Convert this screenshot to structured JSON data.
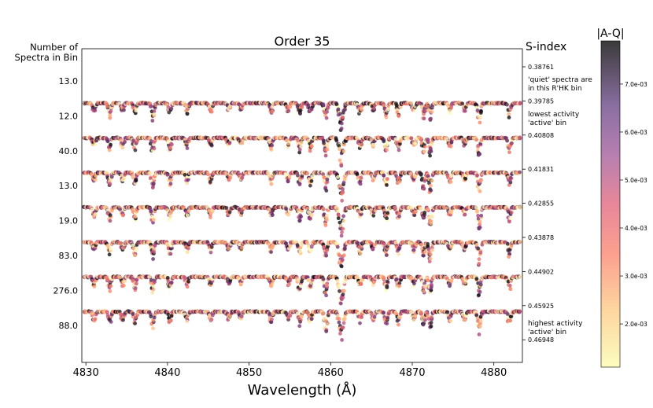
{
  "chart_data": {
    "type": "scatter",
    "title": "Order 35",
    "xlabel": "Wavelength (Å)",
    "xlim": [
      4829.5,
      4883.5
    ],
    "x_ticks": [
      "4830",
      "4840",
      "4850",
      "4860",
      "4870",
      "4880"
    ],
    "x_tick_values": [
      4830,
      4840,
      4850,
      4860,
      4870,
      4880
    ],
    "left_axis_title": [
      "Number of",
      "Spectra in Bin"
    ],
    "left_labels": [
      "13.0",
      "12.0",
      "40.0",
      "13.0",
      "19.0",
      "83.0",
      "276.0",
      "88.0"
    ],
    "right_axis_title": "S-index",
    "right_ticks": [
      "0.38761",
      "0.39785",
      "0.40808",
      "0.41831",
      "0.42855",
      "0.43878",
      "0.44902",
      "0.45925",
      "0.46948"
    ],
    "annotations": [
      {
        "lines": [
          "'quiet' spectra are",
          "in this R'HK bin"
        ],
        "near": "0.38761-0.39785"
      },
      {
        "lines": [
          "lowest activity",
          "'active' bin"
        ],
        "near": "0.39785-0.40808"
      },
      {
        "lines": [
          "highest activity",
          "'active' bin"
        ],
        "near": "0.45925-0.46948"
      }
    ],
    "absorption_lines": [
      {
        "x": 4831.0,
        "depth": 0.35
      },
      {
        "x": 4832.9,
        "depth": 0.5
      },
      {
        "x": 4834.5,
        "depth": 0.35
      },
      {
        "x": 4836.0,
        "depth": 0.45
      },
      {
        "x": 4838.2,
        "depth": 0.6
      },
      {
        "x": 4840.3,
        "depth": 0.45
      },
      {
        "x": 4842.4,
        "depth": 0.35
      },
      {
        "x": 4845.3,
        "depth": 0.35
      },
      {
        "x": 4847.5,
        "depth": 0.3
      },
      {
        "x": 4849.0,
        "depth": 0.25
      },
      {
        "x": 4852.7,
        "depth": 0.4
      },
      {
        "x": 4854.8,
        "depth": 0.3
      },
      {
        "x": 4856.2,
        "depth": 0.5
      },
      {
        "x": 4857.5,
        "depth": 0.45
      },
      {
        "x": 4859.4,
        "depth": 0.7
      },
      {
        "x": 4861.3,
        "depth": 1.0
      },
      {
        "x": 4863.6,
        "depth": 0.4
      },
      {
        "x": 4865.2,
        "depth": 0.3
      },
      {
        "x": 4866.8,
        "depth": 0.5
      },
      {
        "x": 4868.3,
        "depth": 0.45
      },
      {
        "x": 4870.2,
        "depth": 0.35
      },
      {
        "x": 4871.4,
        "depth": 0.6
      },
      {
        "x": 4872.2,
        "depth": 0.7
      },
      {
        "x": 4874.6,
        "depth": 0.35
      },
      {
        "x": 4876.4,
        "depth": 0.3
      },
      {
        "x": 4878.2,
        "depth": 0.8
      },
      {
        "x": 4881.9,
        "depth": 0.5
      }
    ],
    "colorbar": {
      "title": "|A-Q|",
      "ticks": [
        "2.0e-03",
        "3.0e-03",
        "4.0e-03",
        "5.0e-03",
        "6.0e-03",
        "7.0e-03"
      ],
      "tick_values": [
        0.002,
        0.003,
        0.004,
        0.005,
        0.006,
        0.007
      ],
      "range": [
        0.0011,
        0.0079
      ],
      "colormap": "magma_r"
    },
    "colors": {
      "low": "#fcfdbf",
      "mid_low": "#fb8761",
      "mid": "#b73779",
      "mid_high": "#721f81",
      "high": "#000000"
    }
  }
}
